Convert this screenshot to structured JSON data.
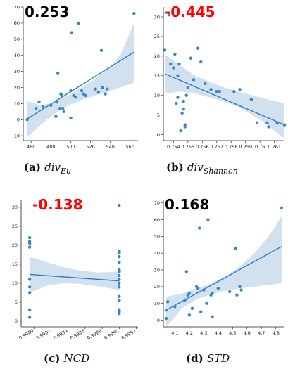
{
  "colors": {
    "point": "#3a86c0",
    "line": "#2f7dbf",
    "band": "#c9dced",
    "corr_positive": "#000000",
    "corr_negative": "#ff0000"
  },
  "chart_data": [
    {
      "type": "scatter",
      "id": "a",
      "caption_label": "(a)",
      "caption_main": "div",
      "caption_sub": "Eu",
      "corr_text": "0.253",
      "corr_sign": "positive",
      "xlim": [
        452,
        568
      ],
      "ylim": [
        -13,
        70
      ],
      "xticks": [
        460,
        480,
        500,
        520,
        540,
        560
      ],
      "yticks": [
        -10,
        0,
        10,
        20,
        30,
        40,
        50,
        60,
        70
      ],
      "xtick_rotate": false,
      "points": [
        [
          456,
          0
        ],
        [
          465,
          7
        ],
        [
          468,
          11
        ],
        [
          472,
          8
        ],
        [
          480,
          9
        ],
        [
          485,
          2
        ],
        [
          486,
          11
        ],
        [
          487,
          29
        ],
        [
          489,
          7
        ],
        [
          490,
          16
        ],
        [
          491,
          15
        ],
        [
          492,
          7
        ],
        [
          493,
          5
        ],
        [
          500,
          1
        ],
        [
          500,
          18
        ],
        [
          501,
          54
        ],
        [
          503,
          15
        ],
        [
          505,
          14
        ],
        [
          508,
          60
        ],
        [
          511,
          18
        ],
        [
          513,
          16
        ],
        [
          515,
          15
        ],
        [
          525,
          19
        ],
        [
          528,
          17
        ],
        [
          531,
          43
        ],
        [
          532,
          20
        ],
        [
          535,
          16
        ],
        [
          537,
          19
        ],
        [
          564,
          66
        ]
      ],
      "fit": {
        "x0": 456,
        "y0": 0.5,
        "x1": 564,
        "y1": 42
      },
      "band": {
        "x": [
          456,
          470,
          480,
          490,
          500,
          510,
          520,
          530,
          540,
          550,
          564
        ],
        "lower": [
          -11,
          -3,
          2,
          6.5,
          9.5,
          12,
          14,
          16,
          18,
          20,
          23
        ],
        "upper": [
          11.5,
          9,
          10,
          13,
          16,
          19.5,
          23.5,
          28,
          33,
          40,
          60
        ]
      }
    },
    {
      "type": "scatter",
      "id": "b",
      "caption_label": "(b)",
      "caption_main": "div",
      "caption_sub": "Shannon",
      "corr_text": "-0.445",
      "corr_sign": "negative",
      "xlim": [
        0.7533,
        0.7617
      ],
      "ylim": [
        -1.5,
        32.5
      ],
      "xticks": [
        0.754,
        0.755,
        0.756,
        0.757,
        0.758,
        0.759,
        0.76,
        0.761
      ],
      "yticks": [
        0,
        5,
        10,
        15,
        20,
        25,
        30
      ],
      "xtick_rotate": false,
      "points": [
        [
          0.7534,
          21.5
        ],
        [
          0.7537,
          30.5
        ],
        [
          0.7538,
          18
        ],
        [
          0.754,
          17
        ],
        [
          0.7541,
          20.5
        ],
        [
          0.7542,
          8
        ],
        [
          0.7543,
          9.5
        ],
        [
          0.7543,
          15
        ],
        [
          0.7544,
          18
        ],
        [
          0.7545,
          1
        ],
        [
          0.7546,
          5.5
        ],
        [
          0.7547,
          8.5
        ],
        [
          0.7547,
          6.5
        ],
        [
          0.7548,
          2
        ],
        [
          0.7548,
          2.5
        ],
        [
          0.7549,
          10
        ],
        [
          0.755,
          12
        ],
        [
          0.7552,
          19.5
        ],
        [
          0.7554,
          14
        ],
        [
          0.7557,
          22
        ],
        [
          0.7559,
          18.5
        ],
        [
          0.7562,
          13
        ],
        [
          0.7566,
          11.5
        ],
        [
          0.757,
          11
        ],
        [
          0.7572,
          11
        ],
        [
          0.7582,
          11
        ],
        [
          0.7586,
          11.5
        ],
        [
          0.7594,
          9
        ],
        [
          0.7598,
          3
        ],
        [
          0.7605,
          3
        ],
        [
          0.7606,
          2
        ],
        [
          0.7612,
          3
        ],
        [
          0.7617,
          2.5
        ]
      ],
      "fit": {
        "x0": 0.7534,
        "y0": 15.5,
        "x1": 0.7617,
        "y1": 2.5
      },
      "band": {
        "x": [
          0.7534,
          0.7545,
          0.7555,
          0.7565,
          0.7575,
          0.7585,
          0.7595,
          0.7605,
          0.7617
        ],
        "lower": [
          10.5,
          11,
          10.5,
          9.5,
          8.5,
          7,
          5,
          2.5,
          -1
        ],
        "upper": [
          20.5,
          17.5,
          15,
          13.5,
          12,
          11,
          10,
          9,
          8
        ]
      }
    },
    {
      "type": "scatter",
      "id": "c",
      "caption_label": "(c)",
      "caption_main": "NCD",
      "caption_sub": "",
      "corr_text": "-0.138",
      "corr_sign": "negative",
      "xlim": [
        0.99785,
        0.99922
      ],
      "ylim": [
        -1.5,
        32
      ],
      "xticks": [
        0.9978,
        0.998,
        0.9982,
        0.9984,
        0.9986,
        0.9988,
        0.999,
        0.9992
      ],
      "xticklabels": [
        "0.9978",
        "0.9980",
        "0.9982",
        "0.9984",
        "0.9986",
        "0.9988",
        "0.9990",
        "0.9992"
      ],
      "yticks": [
        0,
        5,
        10,
        15,
        20,
        25,
        30
      ],
      "xtick_rotate": true,
      "points": [
        [
          0.99795,
          1
        ],
        [
          0.99795,
          3
        ],
        [
          0.99795,
          7.5
        ],
        [
          0.99795,
          9
        ],
        [
          0.99795,
          11
        ],
        [
          0.99795,
          19.5
        ],
        [
          0.99795,
          20.5
        ],
        [
          0.99795,
          21
        ],
        [
          0.99795,
          22
        ],
        [
          0.999,
          2
        ],
        [
          0.999,
          2.5
        ],
        [
          0.999,
          3
        ],
        [
          0.999,
          5.5
        ],
        [
          0.999,
          6.5
        ],
        [
          0.999,
          9
        ],
        [
          0.999,
          10
        ],
        [
          0.999,
          11
        ],
        [
          0.999,
          12
        ],
        [
          0.999,
          13
        ],
        [
          0.999,
          13.5
        ],
        [
          0.999,
          15.5
        ],
        [
          0.999,
          17
        ],
        [
          0.999,
          18
        ],
        [
          0.999,
          18.5
        ],
        [
          0.999,
          30.5
        ]
      ],
      "fit": {
        "x0": 0.99795,
        "y0": 12.3,
        "x1": 0.999,
        "y1": 10.6
      },
      "band": {
        "x": [
          0.99795,
          0.99815,
          0.99835,
          0.99855,
          0.99875,
          0.999
        ],
        "lower": [
          7.5,
          9.3,
          10,
          9.8,
          9.2,
          8.2
        ],
        "upper": [
          17,
          15.5,
          14.2,
          13.3,
          12.8,
          13
        ]
      }
    },
    {
      "type": "scatter",
      "id": "d",
      "caption_label": "(d)",
      "caption_main": "STD",
      "caption_sub": "",
      "corr_text": "0.168",
      "corr_sign": "positive",
      "xlim": [
        4.02,
        4.86
      ],
      "ylim": [
        -4,
        72
      ],
      "xticks": [
        4.1,
        4.2,
        4.3,
        4.4,
        4.5,
        4.6,
        4.7,
        4.8
      ],
      "yticks": [
        0,
        10,
        20,
        30,
        40,
        50,
        60,
        70
      ],
      "xtick_rotate": false,
      "points": [
        [
          4.04,
          1
        ],
        [
          4.04,
          6
        ],
        [
          4.05,
          11
        ],
        [
          4.1,
          8
        ],
        [
          4.17,
          12
        ],
        [
          4.18,
          29
        ],
        [
          4.19,
          15
        ],
        [
          4.2,
          16
        ],
        [
          4.2,
          3
        ],
        [
          4.22,
          7
        ],
        [
          4.25,
          20
        ],
        [
          4.26,
          19
        ],
        [
          4.27,
          55
        ],
        [
          4.28,
          5
        ],
        [
          4.3,
          18
        ],
        [
          4.32,
          10
        ],
        [
          4.33,
          60
        ],
        [
          4.35,
          15
        ],
        [
          4.36,
          16
        ],
        [
          4.36,
          2
        ],
        [
          4.4,
          19
        ],
        [
          4.48,
          17
        ],
        [
          4.52,
          43
        ],
        [
          4.53,
          15
        ],
        [
          4.55,
          20
        ],
        [
          4.56,
          18
        ],
        [
          4.84,
          67
        ]
      ],
      "fit": {
        "x0": 4.04,
        "y0": 6,
        "x1": 4.84,
        "y1": 44
      },
      "band": {
        "x": [
          4.04,
          4.15,
          4.25,
          4.35,
          4.45,
          4.55,
          4.65,
          4.75,
          4.84
        ],
        "lower": [
          -4,
          7,
          12.5,
          15.5,
          17.5,
          19,
          20,
          21,
          22
        ],
        "upper": [
          14,
          16,
          19,
          22,
          26,
          32,
          40,
          50,
          62
        ]
      }
    }
  ]
}
